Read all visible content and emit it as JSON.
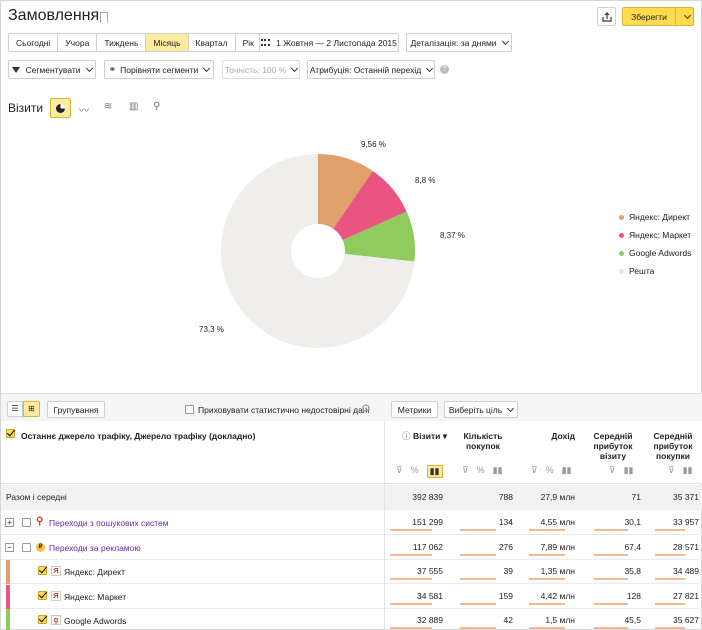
{
  "header": {
    "title": "Замовлення",
    "save_label": "Зберегти"
  },
  "periods": [
    "Сьогодні",
    "Учора",
    "Тиждень",
    "Місяць",
    "Квартал",
    "Рік"
  ],
  "date_range": "1 Жовтня — 2 Листопада 2015",
  "detail": "Деталізація: за днями",
  "toolbar2": {
    "segment": "Сегментувати",
    "compare": "Порівняти сегменти",
    "accuracy": "Точність: 100 %",
    "attribution": "Атрибуція: Останній перехід"
  },
  "chart_title": "Візити",
  "chart_data": {
    "type": "pie",
    "labels": [
      "Яндекс: Директ",
      "Яндекс: Маркет",
      "Google Adwords",
      "Решта"
    ],
    "values": [
      9.56,
      8.8,
      8.37,
      73.3
    ],
    "value_labels": [
      "9,56 %",
      "8,8 %",
      "8,37 %",
      "73,3 %"
    ],
    "colors": [
      "#e0a06c",
      "#e95480",
      "#8fcc5c",
      "#f0eeeb"
    ]
  },
  "table_toolbar": {
    "group": "Групування",
    "hide_label": "Приховувати статистично недостовірні дані",
    "metrics": "Метрики",
    "goal": "Виберіть ціль"
  },
  "dimension_header": "Останнє джерело трафіку, Джерело трафіку (докладно)",
  "columns": [
    "Візити",
    "Кількість покупок",
    "Дохід",
    "Середній прибуток візиту",
    "Середній прибуток покупки"
  ],
  "total": {
    "label": "Разом і середні",
    "values": [
      "392 839",
      "788",
      "27,9 млн",
      "71",
      "35 371"
    ]
  },
  "rows": [
    {
      "label": "Переходи з пошукових систем",
      "values": [
        "151 299",
        "134",
        "4,55 млн",
        "30,1",
        "33 957"
      ],
      "color": "#6a2aa0",
      "level": 0,
      "expand": "+"
    },
    {
      "label": "Переходи за рекламою",
      "values": [
        "117 062",
        "276",
        "7,89 млн",
        "67,4",
        "28 571"
      ],
      "color": "#6a2aa0",
      "level": 0,
      "expand": "−"
    },
    {
      "label": "Яндекс: Директ",
      "values": [
        "37 555",
        "39",
        "1,35 млн",
        "35,8",
        "34 489"
      ],
      "color": "#222",
      "level": 1,
      "stripe": "#e0a06c"
    },
    {
      "label": "Яндекс: Маркет",
      "values": [
        "34 581",
        "159",
        "4,42 млн",
        "128",
        "27 821"
      ],
      "color": "#222",
      "level": 1,
      "stripe": "#e95480"
    },
    {
      "label": "Google Adwords",
      "values": [
        "32 889",
        "42",
        "1,5 млн",
        "45,5",
        "35 627"
      ],
      "color": "#222",
      "level": 1,
      "stripe": "#8fcc5c"
    }
  ]
}
